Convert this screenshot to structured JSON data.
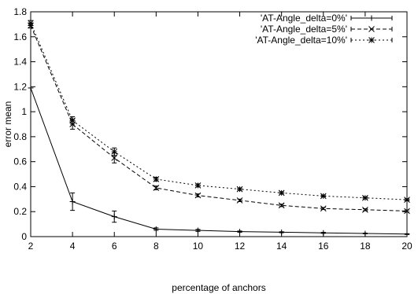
{
  "chart_data": {
    "type": "line",
    "title": "",
    "xlabel": "percentage of anchors",
    "ylabel": "error mean",
    "xlim": [
      2,
      20
    ],
    "ylim": [
      0,
      1.8
    ],
    "x_ticks": [
      "2",
      "4",
      "6",
      "8",
      "10",
      "12",
      "14",
      "16",
      "18",
      "20"
    ],
    "y_ticks": [
      "0",
      "0.2",
      "0.4",
      "0.6",
      "0.8",
      "1",
      "1.2",
      "1.4",
      "1.6",
      "1.8"
    ],
    "grid": false,
    "legend_position": "top-right",
    "x": [
      2,
      4,
      6,
      8,
      10,
      12,
      14,
      16,
      18,
      20
    ],
    "series": [
      {
        "name": "'AT-Angle_delta=0%'",
        "style": "solid",
        "marker": "plus",
        "values": [
          1.19,
          0.28,
          0.16,
          0.06,
          0.05,
          0.04,
          0.035,
          0.03,
          0.025,
          0.02
        ],
        "errors": [
          0.0,
          0.07,
          0.045,
          0.01,
          0.008,
          0.005,
          0.004,
          0.004,
          0.003,
          0.003
        ]
      },
      {
        "name": "'AT-Angle_delta=5%'",
        "style": "dashed",
        "marker": "cross",
        "values": [
          1.69,
          0.9,
          0.63,
          0.39,
          0.33,
          0.29,
          0.25,
          0.225,
          0.215,
          0.205
        ],
        "errors": [
          0.02,
          0.04,
          0.04,
          0.015,
          0.012,
          0.01,
          0.01,
          0.008,
          0.008,
          0.008
        ]
      },
      {
        "name": "'AT-Angle_delta=10%'",
        "style": "dotted",
        "marker": "star",
        "values": [
          1.71,
          0.93,
          0.68,
          0.46,
          0.41,
          0.38,
          0.35,
          0.325,
          0.31,
          0.295
        ],
        "errors": [
          0.02,
          0.03,
          0.03,
          0.015,
          0.012,
          0.01,
          0.01,
          0.008,
          0.008,
          0.008
        ]
      }
    ]
  }
}
